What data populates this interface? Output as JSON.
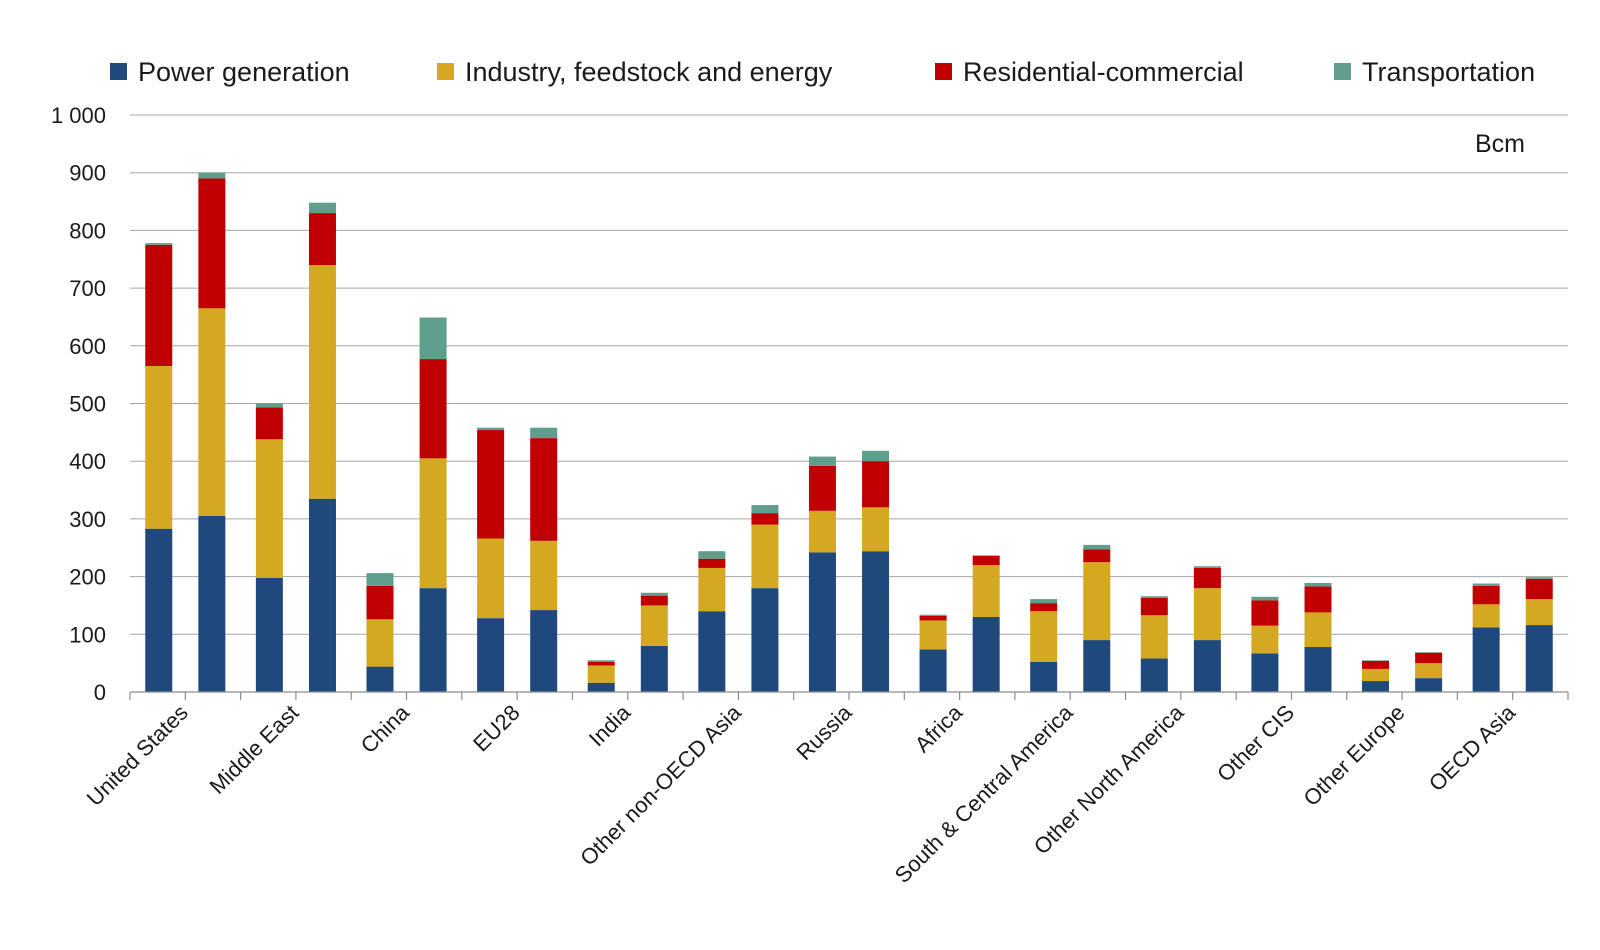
{
  "colors": {
    "power": "#1f497d",
    "industry": "#d4a820",
    "residential": "#c00000",
    "transport": "#5f9e8c"
  },
  "chart_data": {
    "type": "bar",
    "stacked": true,
    "unit_label": "Bcm",
    "ylim": [
      0,
      1000
    ],
    "yticks": [
      0,
      100,
      200,
      300,
      400,
      500,
      600,
      700,
      800,
      900,
      1000
    ],
    "ytick_labels": [
      "0",
      "100",
      "200",
      "300",
      "400",
      "500",
      "600",
      "700",
      "800",
      "900",
      "1 000"
    ],
    "grid": true,
    "legend_position": "top",
    "bars_per_category": 2,
    "categories": [
      "United States",
      "Middle East",
      "China",
      "EU28",
      "India",
      "Other non-OECD Asia",
      "Russia",
      "Africa",
      "South & Central America",
      "Other North America",
      "Other CIS",
      "Other Europe",
      "OECD Asia"
    ],
    "series": [
      {
        "name": "Power generation",
        "color_key": "power",
        "values": [
          [
            283,
            305
          ],
          [
            198,
            335
          ],
          [
            44,
            180
          ],
          [
            128,
            142
          ],
          [
            16,
            80
          ],
          [
            140,
            180
          ],
          [
            242,
            244
          ],
          [
            74,
            130
          ],
          [
            52,
            90
          ],
          [
            58,
            90
          ],
          [
            67,
            78
          ],
          [
            19,
            24
          ],
          [
            112,
            116
          ]
        ]
      },
      {
        "name": "Industry, feedstock and energy",
        "color_key": "industry",
        "values": [
          [
            282,
            360
          ],
          [
            240,
            405
          ],
          [
            82,
            225
          ],
          [
            138,
            120
          ],
          [
            30,
            70
          ],
          [
            75,
            110
          ],
          [
            72,
            76
          ],
          [
            50,
            90
          ],
          [
            88,
            135
          ],
          [
            75,
            90
          ],
          [
            48,
            60
          ],
          [
            21,
            26
          ],
          [
            40,
            45
          ]
        ]
      },
      {
        "name": "Residential-commercial",
        "color_key": "residential",
        "values": [
          [
            210,
            225
          ],
          [
            55,
            90
          ],
          [
            58,
            172
          ],
          [
            188,
            178
          ],
          [
            6,
            17
          ],
          [
            16,
            20
          ],
          [
            78,
            80
          ],
          [
            8,
            16
          ],
          [
            14,
            22
          ],
          [
            30,
            35
          ],
          [
            44,
            45
          ],
          [
            14,
            18
          ],
          [
            32,
            35
          ]
        ]
      },
      {
        "name": "Transportation",
        "color_key": "transport",
        "values": [
          [
            3,
            10
          ],
          [
            7,
            18
          ],
          [
            22,
            72
          ],
          [
            4,
            18
          ],
          [
            3,
            5
          ],
          [
            13,
            14
          ],
          [
            16,
            18
          ],
          [
            2,
            1
          ],
          [
            7,
            8
          ],
          [
            3,
            3
          ],
          [
            6,
            6
          ],
          [
            1,
            1
          ],
          [
            4,
            3
          ]
        ]
      }
    ]
  }
}
